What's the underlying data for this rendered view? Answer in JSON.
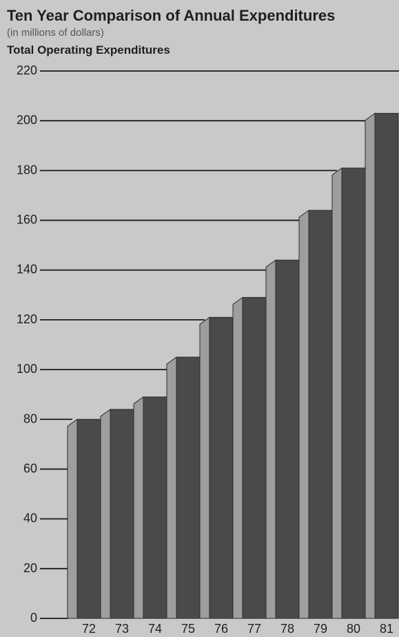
{
  "chart_data": {
    "type": "bar",
    "title": "Ten Year Comparison of Annual Expenditures",
    "subtitle": "(in millions of dollars)",
    "series_label": "Total Operating Expenditures",
    "categories": [
      "72",
      "73",
      "74",
      "75",
      "76",
      "77",
      "78",
      "79",
      "80",
      "81"
    ],
    "series": [
      {
        "name": "Total Operating Expenditures",
        "values": [
          80,
          84,
          89,
          105,
          121,
          129,
          144,
          164,
          181,
          203
        ]
      }
    ],
    "y_ticks": [
      "220",
      "200",
      "180",
      "160",
      "140",
      "120",
      "100",
      "80",
      "60",
      "40",
      "20",
      "0"
    ],
    "ylim": [
      0,
      220
    ],
    "grid": true,
    "colors": {
      "background": "#c9c9c9",
      "bar_front": "#4a4a4a",
      "bar_side": "#9e9e9e",
      "text": "#1f1f1f"
    }
  }
}
